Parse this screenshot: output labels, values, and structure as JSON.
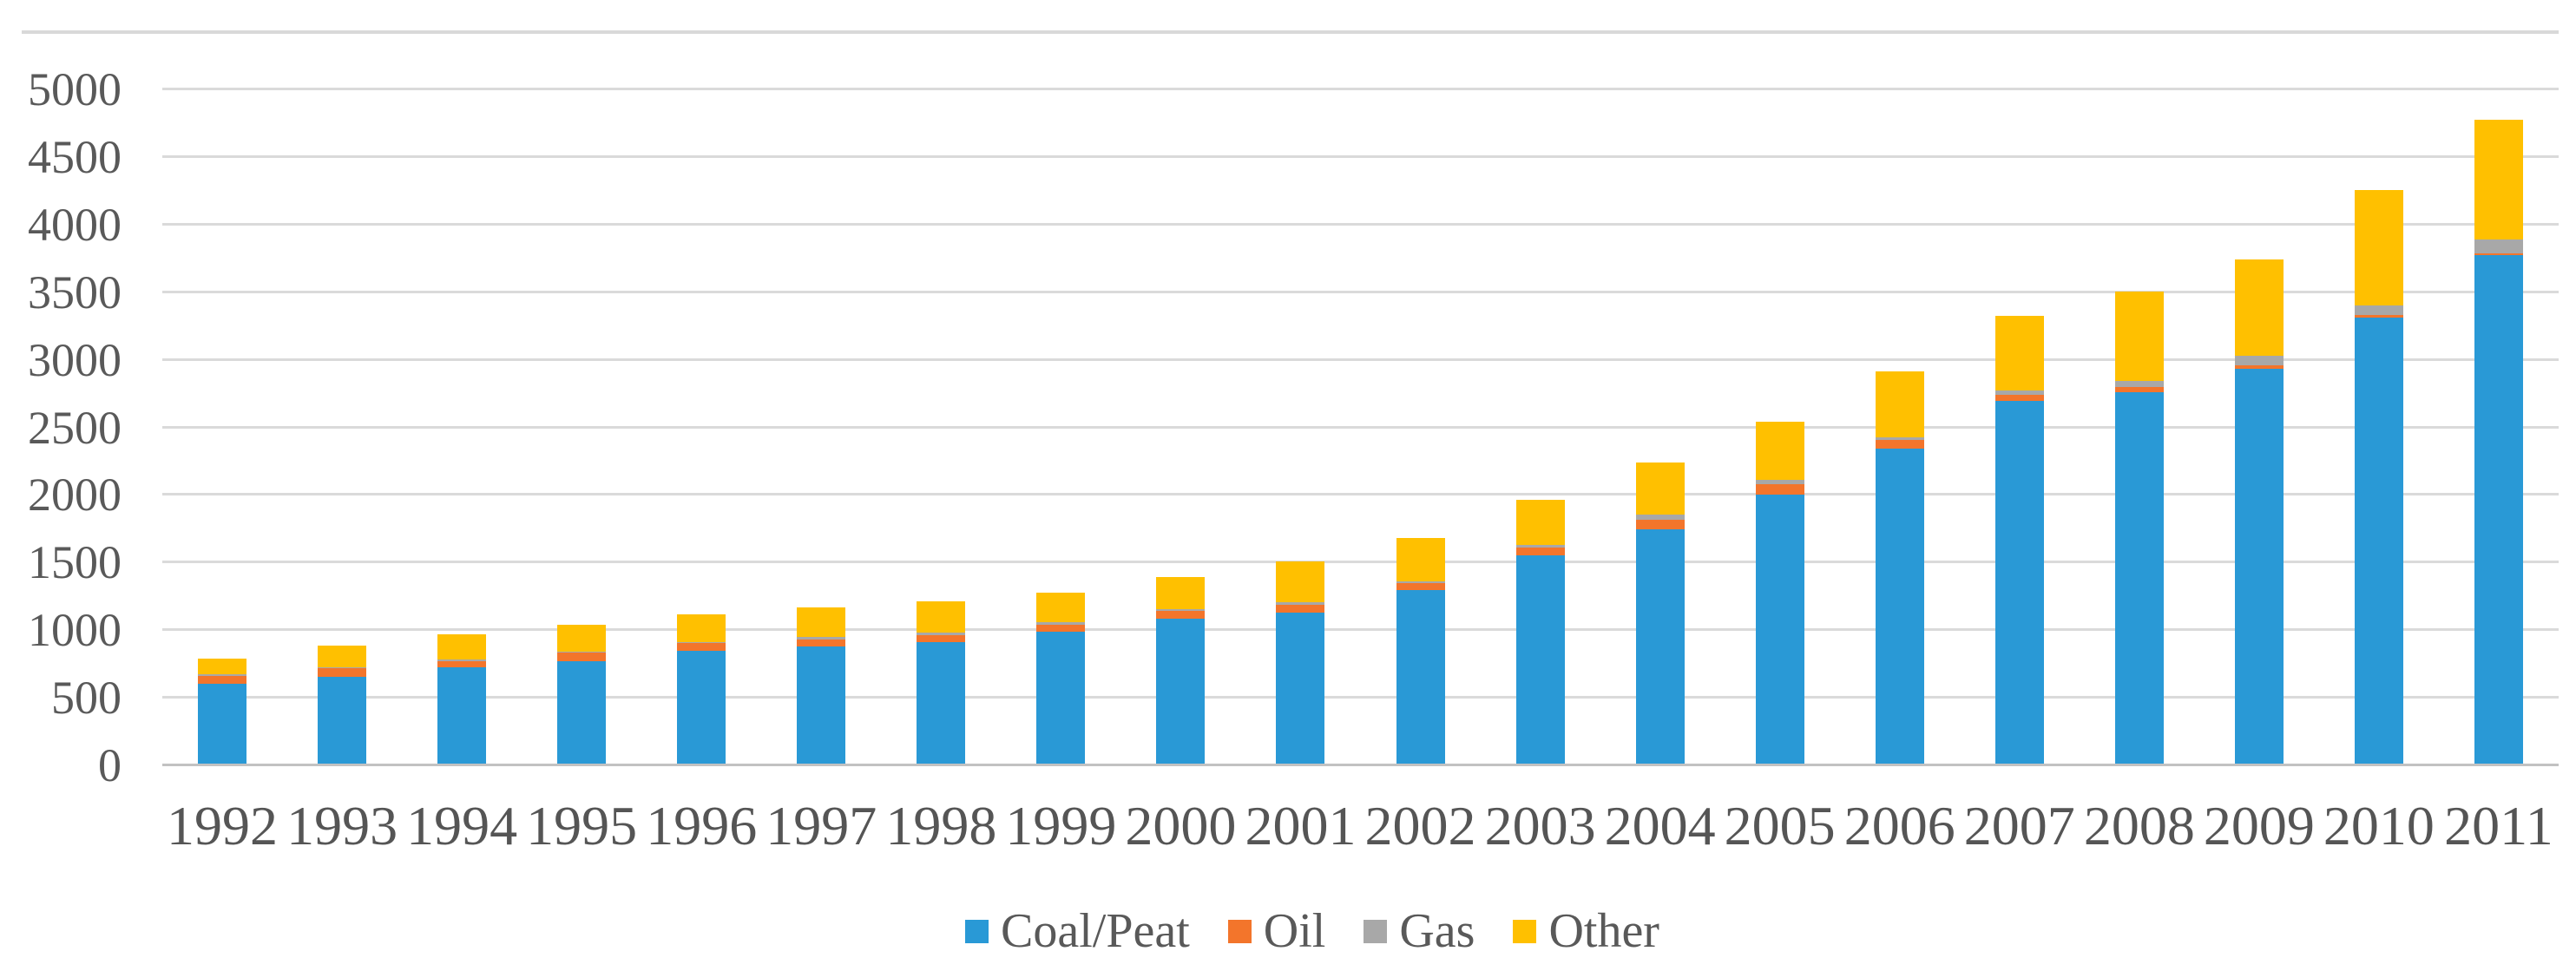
{
  "chart_data": {
    "type": "bar",
    "stacked": true,
    "title": "",
    "xlabel": "",
    "ylabel": "",
    "categories": [
      "1992",
      "1993",
      "1994",
      "1995",
      "1996",
      "1997",
      "1998",
      "1999",
      "2000",
      "2001",
      "2002",
      "2003",
      "2004",
      "2005",
      "2006",
      "2007",
      "2008",
      "2009",
      "2010",
      "2011"
    ],
    "series": [
      {
        "name": "Coal/Peat",
        "color": "#2999D6",
        "values": [
          590,
          640,
          715,
          760,
          835,
          865,
          900,
          975,
          1070,
          1120,
          1285,
          1540,
          1730,
          1990,
          2330,
          2680,
          2750,
          2920,
          3300,
          3760
        ]
      },
      {
        "name": "Oil",
        "color": "#F3752B",
        "values": [
          60,
          65,
          45,
          60,
          55,
          55,
          50,
          50,
          60,
          55,
          50,
          60,
          75,
          80,
          65,
          50,
          35,
          25,
          20,
          15
        ]
      },
      {
        "name": "Gas",
        "color": "#A8A8A8",
        "values": [
          10,
          10,
          10,
          10,
          10,
          20,
          20,
          20,
          15,
          20,
          15,
          15,
          35,
          30,
          20,
          30,
          45,
          70,
          70,
          100
        ]
      },
      {
        "name": "Other",
        "color": "#FFC000",
        "values": [
          120,
          155,
          185,
          200,
          205,
          215,
          230,
          220,
          235,
          300,
          320,
          335,
          390,
          430,
          485,
          555,
          665,
          715,
          855,
          885
        ]
      }
    ],
    "totals": [
      780,
      870,
      955,
      1030,
      1105,
      1155,
      1200,
      1265,
      1380,
      1495,
      1670,
      1950,
      2230,
      2530,
      2900,
      3315,
      3495,
      3730,
      4245,
      4760
    ],
    "ylim": [
      0,
      5000
    ],
    "ytick_step": 500,
    "ytick_labels": [
      "0",
      "500",
      "1000",
      "1500",
      "2000",
      "2500",
      "3000",
      "3500",
      "4000",
      "4500",
      "5000"
    ],
    "grid": "horizontal",
    "legend_position": "bottom",
    "axis_text_color": "#595959",
    "gridline_color": "#DADADA",
    "axis_line_color": "#C2C2C2",
    "border_color": "#D9D9D9"
  }
}
